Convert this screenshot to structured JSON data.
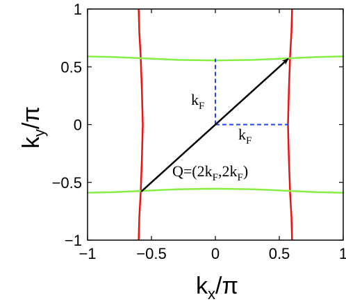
{
  "chart_data": {
    "type": "line",
    "xlabel_main": "k",
    "xlabel_sub": "x",
    "xlabel_tail": "/π",
    "ylabel_main": "k",
    "ylabel_sub": "y",
    "ylabel_tail": "/π",
    "xlim": [
      -1,
      1
    ],
    "ylim": [
      -1,
      1
    ],
    "xticks": [
      -1,
      -0.5,
      0,
      0.5,
      1
    ],
    "yticks": [
      -1,
      -0.5,
      0,
      0.5,
      1
    ],
    "xtick_labels": [
      "−1",
      "−0.5",
      "0",
      "0.5",
      "1"
    ],
    "ytick_labels": [
      "−1",
      "−0.5",
      "0",
      "0.5",
      "1"
    ],
    "grid": false,
    "series": [
      {
        "color": "#ee1111",
        "x": [
          -0.6,
          -0.595,
          -0.585,
          -0.575,
          -0.568,
          -0.575,
          -0.585,
          -0.595,
          -0.6
        ],
        "y": [
          -1,
          -0.8,
          -0.6,
          -0.3,
          0,
          0.3,
          0.6,
          0.8,
          1
        ]
      },
      {
        "color": "#ee1111",
        "x": [
          0.6,
          0.595,
          0.585,
          0.575,
          0.568,
          0.575,
          0.585,
          0.595,
          0.6
        ],
        "y": [
          -1,
          -0.8,
          -0.6,
          -0.3,
          0,
          0.3,
          0.6,
          0.8,
          1
        ]
      },
      {
        "color": "#88ee44",
        "x": [
          -1,
          -0.8,
          -0.6,
          -0.3,
          0,
          0.3,
          0.6,
          0.8,
          1
        ],
        "y": [
          0.59,
          0.585,
          0.575,
          0.56,
          0.555,
          0.56,
          0.575,
          0.585,
          0.59
        ]
      },
      {
        "color": "#88ee44",
        "x": [
          -1,
          -0.8,
          -0.6,
          -0.3,
          0,
          0.3,
          0.6,
          0.8,
          1
        ],
        "y": [
          -0.59,
          -0.585,
          -0.575,
          -0.56,
          -0.555,
          -0.56,
          -0.575,
          -0.585,
          -0.59
        ]
      }
    ],
    "arrow": {
      "from": [
        -0.58,
        -0.58
      ],
      "to": [
        0.57,
        0.57
      ],
      "color": "#000000"
    },
    "dashed_lines": [
      {
        "from": [
          0,
          0
        ],
        "to": [
          0,
          0.57
        ],
        "color": "#2244ee"
      },
      {
        "from": [
          0,
          0
        ],
        "to": [
          0.57,
          0
        ],
        "color": "#2244ee"
      }
    ],
    "annotations": [
      {
        "id": "kf_vertical",
        "main": "k",
        "sub": "F",
        "at": [
          -0.135,
          0.32
        ]
      },
      {
        "id": "kf_horizontal",
        "main": "k",
        "sub": "F",
        "at": [
          0.18,
          -0.09
        ]
      },
      {
        "id": "q_label",
        "text_before": "Q=(2k",
        "sub1": "F",
        "text_mid": ",2k",
        "sub2": "F",
        "text_after": ")",
        "at": [
          -0.34,
          -0.45
        ]
      }
    ]
  }
}
